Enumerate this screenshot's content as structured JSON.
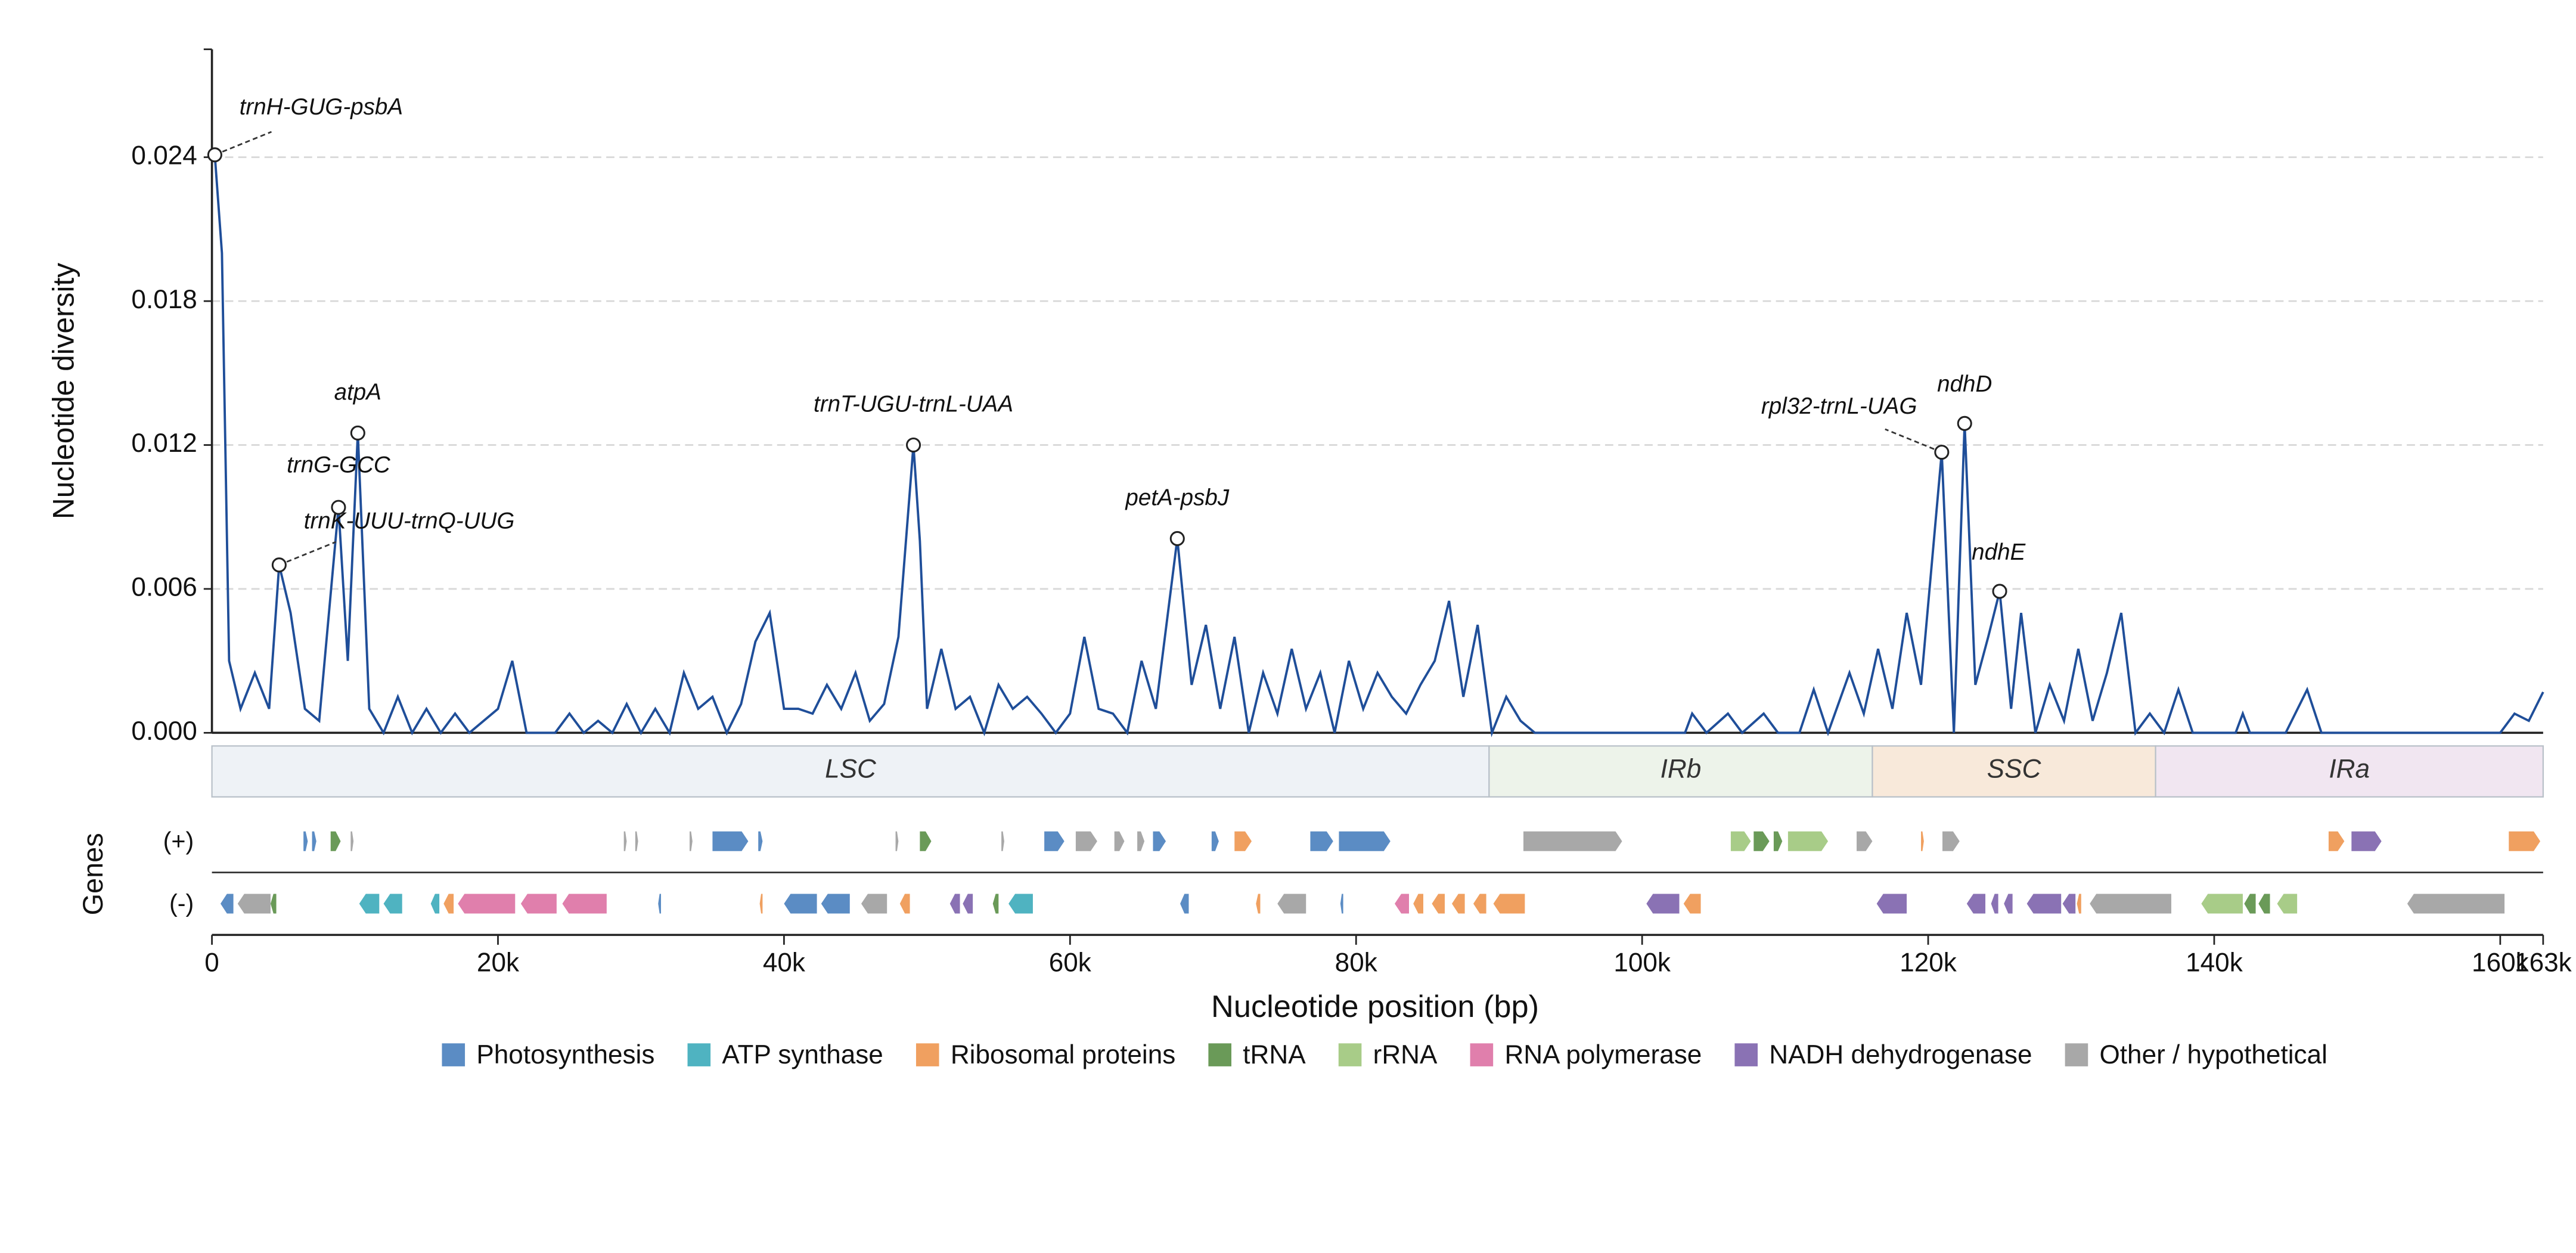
{
  "chart_data": {
    "type": "line",
    "y_label": "Nucleotide diversity",
    "x_label": "Nucleotide position (bp)",
    "color": "#1f4e99",
    "xlim": [
      0,
      163000
    ],
    "ylim": [
      0,
      0.0285
    ],
    "yticks": [
      {
        "value": 0,
        "label": "0.000"
      },
      0.006,
      0.012,
      0.018,
      0.024
    ],
    "xticks": [
      0,
      {
        "value": 20000,
        "label": "20k"
      },
      {
        "value": 40000,
        "label": "40k"
      },
      {
        "value": 60000,
        "label": "60k"
      },
      {
        "value": 80000,
        "label": "80k"
      },
      {
        "value": 100000,
        "label": "100k"
      },
      {
        "value": 120000,
        "label": "120k"
      },
      {
        "value": 140000,
        "label": "140k"
      },
      {
        "value": 160000,
        "label": "160k"
      },
      {
        "value": 163000,
        "label": "163k"
      }
    ],
    "grid": true,
    "x": [
      200,
      700,
      1200,
      2000,
      3000,
      4000,
      4700,
      5500,
      6500,
      7500,
      8850,
      9500,
      10200,
      11000,
      12000,
      13000,
      14000,
      15000,
      16000,
      17000,
      18000,
      19000,
      20000,
      21000,
      22000,
      23000,
      24000,
      25000,
      26000,
      27000,
      28000,
      29000,
      30000,
      31000,
      32000,
      33000,
      34000,
      35000,
      36000,
      37000,
      38000,
      39000,
      40000,
      41000,
      42000,
      43000,
      44000,
      45000,
      46000,
      47000,
      48000,
      49050,
      49500,
      50000,
      51000,
      52000,
      53000,
      54000,
      55000,
      56000,
      57000,
      58000,
      59000,
      60000,
      61000,
      62000,
      63000,
      64000,
      65000,
      66000,
      67500,
      68500,
      69500,
      70500,
      71500,
      72500,
      73500,
      74500,
      75500,
      76500,
      77500,
      78500,
      79500,
      80500,
      81500,
      82500,
      83500,
      84500,
      85500,
      86500,
      87500,
      88500,
      89500,
      90500,
      91500,
      92500,
      96000,
      100000,
      103000,
      103500,
      104500,
      106000,
      107000,
      108500,
      109500,
      111000,
      112000,
      113000,
      114500,
      115500,
      116500,
      117500,
      118500,
      119500,
      120950,
      121800,
      122550,
      123300,
      124200,
      125000,
      125800,
      126500,
      127500,
      128500,
      129500,
      130500,
      131500,
      132500,
      133500,
      134500,
      135500,
      136500,
      137500,
      138500,
      141500,
      142000,
      142500,
      145000,
      146500,
      147500,
      160000,
      161000,
      162000,
      163000
    ],
    "values": [
      0.0241,
      0.02,
      0.003,
      0.001,
      0.0025,
      0.001,
      0.007,
      0.005,
      0.001,
      0.0005,
      0.0094,
      0.003,
      0.0125,
      0.001,
      0,
      0.0015,
      0,
      0.001,
      0,
      0.0008,
      0,
      0.0005,
      0.001,
      0.003,
      0,
      0,
      0,
      0.0008,
      0,
      0.0005,
      0,
      0.0012,
      0,
      0.001,
      0,
      0.0025,
      0.001,
      0.0015,
      0,
      0.0012,
      0.0038,
      0.005,
      0.001,
      0.001,
      0.0008,
      0.002,
      0.001,
      0.0025,
      0.0005,
      0.0012,
      0.004,
      0.012,
      0.008,
      0.001,
      0.0035,
      0.001,
      0.0015,
      0,
      0.002,
      0.001,
      0.0015,
      0.0008,
      0,
      0.0008,
      0.004,
      0.001,
      0.0008,
      0,
      0.003,
      0.001,
      0.0081,
      0.002,
      0.0045,
      0.001,
      0.004,
      0,
      0.0025,
      0.0008,
      0.0035,
      0.001,
      0.0025,
      0,
      0.003,
      0.001,
      0.0025,
      0.0015,
      0.0008,
      0.002,
      0.003,
      0.0055,
      0.0015,
      0.0045,
      0,
      0.0015,
      0.0005,
      0,
      0,
      0,
      0,
      0.0008,
      0,
      0.0008,
      0,
      0.0008,
      0,
      0,
      0.0018,
      0,
      0.0025,
      0.0008,
      0.0035,
      0.001,
      0.005,
      0.002,
      0.0117,
      0,
      0.0129,
      0.002,
      0.004,
      0.0059,
      0.001,
      0.005,
      0,
      0.002,
      0.0005,
      0.0035,
      0.0005,
      0.0025,
      0.005,
      0,
      0.0008,
      0,
      0.0018,
      0,
      0,
      0.0008,
      0,
      0,
      0.0018,
      0,
      0,
      0.0008,
      0.0005,
      0.0017
    ],
    "annotations": [
      {
        "text": "trnH-GUG-psbA",
        "x": 200,
        "y": 0.0241
      },
      {
        "text": "trnK-UUU-trnQ-UUG",
        "x": 4700,
        "y": 0.007
      },
      {
        "text": "trnG-GCC",
        "x": 8850,
        "y": 0.0094
      },
      {
        "text": "atpA",
        "x": 10200,
        "y": 0.0125
      },
      {
        "text": "trnT-UGU-trnL-UAA",
        "x": 49050,
        "y": 0.012
      },
      {
        "text": "petA-psbJ",
        "x": 67500,
        "y": 0.0081
      },
      {
        "text": "rpl32-trnL-UAG",
        "x": 120950,
        "y": 0.0117
      },
      {
        "text": "ndhD",
        "x": 122550,
        "y": 0.0129
      },
      {
        "text": "ndhE",
        "x": 125000,
        "y": 0.0059
      }
    ],
    "regions": [
      {
        "name": "LSC",
        "start": 0,
        "end": 89300,
        "color": "#eef2f6"
      },
      {
        "name": "IRb",
        "start": 89300,
        "end": 116100,
        "color": "#edf3ea"
      },
      {
        "name": "SSC",
        "start": 116100,
        "end": 135900,
        "color": "#f8e9da"
      },
      {
        "name": "IRa",
        "start": 135900,
        "end": 163000,
        "color": "#f1e6f1"
      }
    ],
    "genes": {
      "title": "Genes",
      "plus_label": "(+)",
      "minus_label": "(-)",
      "plus": [
        {
          "start": 6400,
          "end": 6700,
          "group": "Photosynthesis"
        },
        {
          "start": 7000,
          "end": 7300,
          "group": "Photosynthesis"
        },
        {
          "start": 8300,
          "end": 9000,
          "group": "tRNA"
        },
        {
          "start": 9700,
          "end": 9900,
          "group": "Other / hypothetical"
        },
        {
          "start": 28800,
          "end": 29000,
          "group": "Other / hypothetical"
        },
        {
          "start": 29600,
          "end": 29800,
          "group": "Other / hypothetical"
        },
        {
          "start": 33400,
          "end": 33600,
          "group": "Other / hypothetical"
        },
        {
          "start": 35000,
          "end": 37500,
          "group": "Photosynthesis"
        },
        {
          "start": 38200,
          "end": 38500,
          "group": "Photosynthesis"
        },
        {
          "start": 47800,
          "end": 48000,
          "group": "Other / hypothetical"
        },
        {
          "start": 49500,
          "end": 50300,
          "group": "tRNA"
        },
        {
          "start": 55200,
          "end": 55400,
          "group": "Other / hypothetical"
        },
        {
          "start": 58200,
          "end": 59600,
          "group": "Photosynthesis"
        },
        {
          "start": 60400,
          "end": 61900,
          "group": "Other / hypothetical"
        },
        {
          "start": 63100,
          "end": 63800,
          "group": "Other / hypothetical"
        },
        {
          "start": 64700,
          "end": 65200,
          "group": "Other / hypothetical"
        },
        {
          "start": 65800,
          "end": 66700,
          "group": "Photosynthesis"
        },
        {
          "start": 69900,
          "end": 70400,
          "group": "Photosynthesis"
        },
        {
          "start": 71500,
          "end": 72700,
          "group": "Ribosomal proteins"
        },
        {
          "start": 76800,
          "end": 78400,
          "group": "Photosynthesis"
        },
        {
          "start": 78800,
          "end": 82400,
          "group": "Photosynthesis"
        },
        {
          "start": 91700,
          "end": 98600,
          "group": "Other / hypothetical"
        },
        {
          "start": 106200,
          "end": 107600,
          "group": "rRNA"
        },
        {
          "start": 107800,
          "end": 108900,
          "group": "tRNA"
        },
        {
          "start": 109200,
          "end": 109800,
          "group": "tRNA"
        },
        {
          "start": 110200,
          "end": 113000,
          "group": "rRNA"
        },
        {
          "start": 115000,
          "end": 116100,
          "group": "Other / hypothetical"
        },
        {
          "start": 119500,
          "end": 119700,
          "group": "Ribosomal proteins"
        },
        {
          "start": 121000,
          "end": 122200,
          "group": "Other / hypothetical"
        },
        {
          "start": 148000,
          "end": 149100,
          "group": "Ribosomal proteins"
        },
        {
          "start": 149600,
          "end": 151700,
          "group": "NADH dehydrogenase"
        },
        {
          "start": 160600,
          "end": 162800,
          "group": "Ribosomal proteins"
        }
      ],
      "minus": [
        {
          "start": 600,
          "end": 1500,
          "group": "Photosynthesis"
        },
        {
          "start": 1800,
          "end": 4100,
          "group": "Other / hypothetical"
        },
        {
          "start": 4100,
          "end": 4500,
          "group": "tRNA"
        },
        {
          "start": 10300,
          "end": 11700,
          "group": "ATP synthase"
        },
        {
          "start": 12000,
          "end": 13300,
          "group": "ATP synthase"
        },
        {
          "start": 15300,
          "end": 15900,
          "group": "ATP synthase"
        },
        {
          "start": 16200,
          "end": 16900,
          "group": "Ribosomal proteins"
        },
        {
          "start": 17200,
          "end": 21200,
          "group": "RNA polymerase"
        },
        {
          "start": 21600,
          "end": 24100,
          "group": "RNA polymerase"
        },
        {
          "start": 24500,
          "end": 27600,
          "group": "RNA polymerase"
        },
        {
          "start": 31200,
          "end": 31400,
          "group": "Photosynthesis"
        },
        {
          "start": 38300,
          "end": 38500,
          "group": "Ribosomal proteins"
        },
        {
          "start": 40000,
          "end": 42300,
          "group": "Photosynthesis"
        },
        {
          "start": 42600,
          "end": 44600,
          "group": "Photosynthesis"
        },
        {
          "start": 45400,
          "end": 47200,
          "group": "Other / hypothetical"
        },
        {
          "start": 48100,
          "end": 48800,
          "group": "Ribosomal proteins"
        },
        {
          "start": 51600,
          "end": 52300,
          "group": "NADH dehydrogenase"
        },
        {
          "start": 52500,
          "end": 53200,
          "group": "NADH dehydrogenase"
        },
        {
          "start": 54600,
          "end": 55000,
          "group": "tRNA"
        },
        {
          "start": 55700,
          "end": 57400,
          "group": "ATP synthase"
        },
        {
          "start": 67700,
          "end": 68300,
          "group": "Photosynthesis"
        },
        {
          "start": 73000,
          "end": 73300,
          "group": "Ribosomal proteins"
        },
        {
          "start": 74500,
          "end": 76500,
          "group": "Other / hypothetical"
        },
        {
          "start": 78900,
          "end": 79100,
          "group": "Photosynthesis"
        },
        {
          "start": 82700,
          "end": 83700,
          "group": "RNA polymerase"
        },
        {
          "start": 84000,
          "end": 84700,
          "group": "Ribosomal proteins"
        },
        {
          "start": 85300,
          "end": 86200,
          "group": "Ribosomal proteins"
        },
        {
          "start": 86700,
          "end": 87600,
          "group": "Ribosomal proteins"
        },
        {
          "start": 88200,
          "end": 89100,
          "group": "Ribosomal proteins"
        },
        {
          "start": 89600,
          "end": 91800,
          "group": "Ribosomal proteins"
        },
        {
          "start": 100300,
          "end": 102600,
          "group": "NADH dehydrogenase"
        },
        {
          "start": 102900,
          "end": 104100,
          "group": "Ribosomal proteins"
        },
        {
          "start": 116400,
          "end": 118500,
          "group": "NADH dehydrogenase"
        },
        {
          "start": 122700,
          "end": 124000,
          "group": "NADH dehydrogenase"
        },
        {
          "start": 124400,
          "end": 124900,
          "group": "NADH dehydrogenase"
        },
        {
          "start": 125300,
          "end": 125900,
          "group": "NADH dehydrogenase"
        },
        {
          "start": 126900,
          "end": 129300,
          "group": "NADH dehydrogenase"
        },
        {
          "start": 129400,
          "end": 130300,
          "group": "NADH dehydrogenase"
        },
        {
          "start": 130400,
          "end": 130700,
          "group": "Ribosomal proteins"
        },
        {
          "start": 131300,
          "end": 137000,
          "group": "Other / hypothetical"
        },
        {
          "start": 139100,
          "end": 142000,
          "group": "rRNA"
        },
        {
          "start": 142100,
          "end": 142900,
          "group": "tRNA"
        },
        {
          "start": 143100,
          "end": 143900,
          "group": "tRNA"
        },
        {
          "start": 144400,
          "end": 145800,
          "group": "rRNA"
        },
        {
          "start": 153500,
          "end": 160300,
          "group": "Other / hypothetical"
        }
      ]
    },
    "legend": [
      {
        "name": "Photosynthesis",
        "color": "#5b8cc4"
      },
      {
        "name": "ATP synthase",
        "color": "#4fb3c1"
      },
      {
        "name": "Ribosomal proteins",
        "color": "#f0a060"
      },
      {
        "name": "tRNA",
        "color": "#6a9a58"
      },
      {
        "name": "rRNA",
        "color": "#a8cc88"
      },
      {
        "name": "RNA polymerase",
        "color": "#e07fac"
      },
      {
        "name": "NADH dehydrogenase",
        "color": "#8a72b4"
      },
      {
        "name": "Other / hypothetical",
        "color": "#a8a8a8"
      }
    ]
  }
}
